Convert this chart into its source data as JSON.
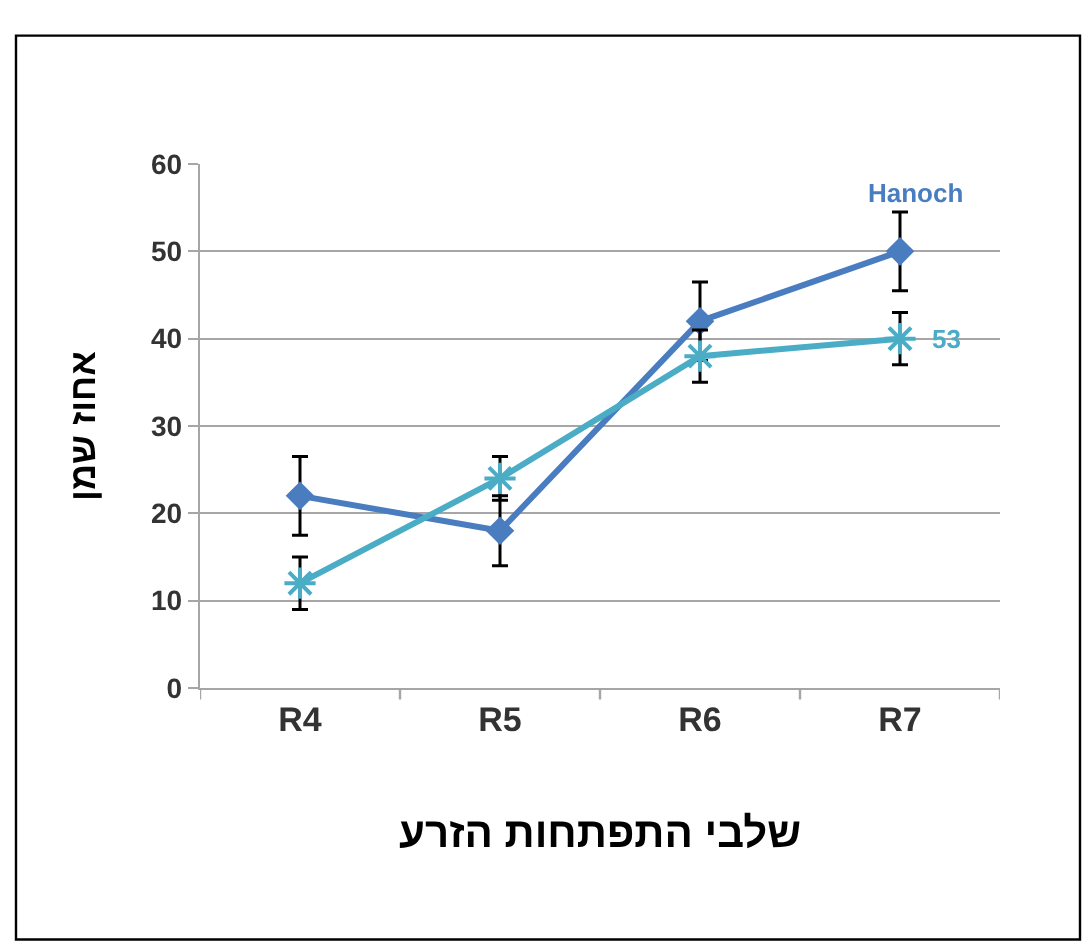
{
  "chart_data": {
    "type": "line",
    "xlabel": "שלבי התפתחות הזרע",
    "ylabel": "אחוז שמן",
    "categories": [
      "R4",
      "R5",
      "R6",
      "R7"
    ],
    "series": [
      {
        "name": "Hanoch",
        "color": "#4a7dc0",
        "marker": "diamond",
        "values": [
          22,
          18,
          42,
          50
        ],
        "errors": [
          4.5,
          4,
          4.5,
          4.5
        ]
      },
      {
        "name": "53",
        "color": "#4bacc6",
        "marker": "cross",
        "values": [
          12,
          24,
          38,
          40
        ],
        "errors": [
          3,
          2.5,
          3,
          3
        ]
      }
    ],
    "ylim": [
      0,
      60
    ],
    "yticks": [
      0,
      10,
      20,
      30,
      40,
      50,
      60
    ],
    "grid": "y",
    "legend": false,
    "line_style": "solid"
  }
}
